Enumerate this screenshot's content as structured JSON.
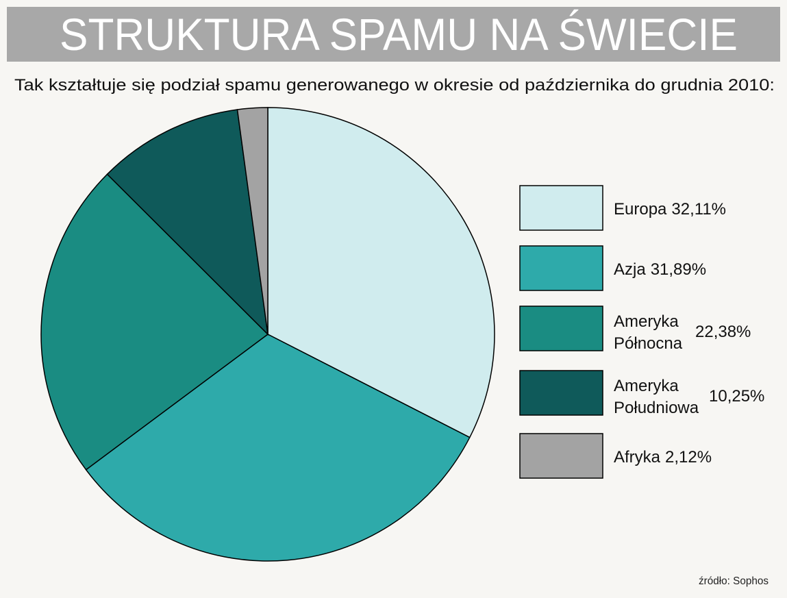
{
  "chart_data": {
    "type": "pie",
    "title": "STRUKTURA SPAMU NA ŚWIECIE",
    "subtitle": "Tak kształtuje się podział spamu generowanego w okresie od października do grudnia 2010:",
    "source": "źródło: Sophos",
    "categories": [
      "Europa",
      "Azja",
      "Ameryka Północna",
      "Ameryka Południowa",
      "Afryka"
    ],
    "values": [
      32.11,
      31.89,
      22.38,
      10.25,
      2.12
    ],
    "value_labels": [
      "32,11%",
      "31,89%",
      "22,38%",
      "10,25%",
      "2,12%"
    ],
    "colors": [
      "#d0ecee",
      "#2eaaaa",
      "#1a8c82",
      "#0f5a5a",
      "#a3a3a3"
    ]
  }
}
